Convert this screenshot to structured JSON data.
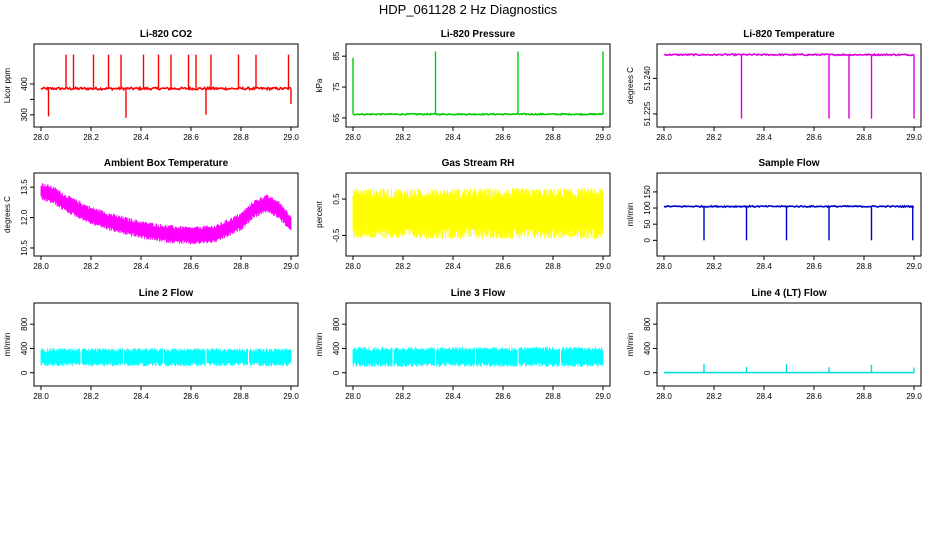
{
  "title": "HDP_061128  2 Hz Diagnostics",
  "chart_data": [
    {
      "type": "line",
      "title": "Li-820 CO2",
      "ylabel": "Licor ppm",
      "color": "#ff0000",
      "xlim": [
        28.0,
        29.0
      ],
      "ylim": [
        280,
        510
      ],
      "yticks": [
        300,
        350,
        400
      ],
      "ytick_labels": [
        "300",
        "",
        "400"
      ],
      "xticks": [
        28.0,
        28.2,
        28.4,
        28.6,
        28.8,
        29.0
      ],
      "xtick_labels": [
        "28.0",
        "28.2",
        "28.4",
        "28.6",
        "28.8",
        "29.0"
      ],
      "baseline": 385,
      "noise": 4,
      "spikes": [
        [
          28.1,
          495
        ],
        [
          28.13,
          495
        ],
        [
          28.21,
          495
        ],
        [
          28.27,
          495
        ],
        [
          28.32,
          495
        ],
        [
          28.41,
          495
        ],
        [
          28.47,
          495
        ],
        [
          28.52,
          495
        ],
        [
          28.59,
          495
        ],
        [
          28.62,
          495
        ],
        [
          28.68,
          495
        ],
        [
          28.79,
          495
        ],
        [
          28.86,
          495
        ],
        [
          28.99,
          495
        ]
      ],
      "dips": [
        [
          28.03,
          295
        ],
        [
          28.34,
          290
        ],
        [
          28.66,
          300
        ],
        [
          29.0,
          335
        ]
      ]
    },
    {
      "type": "line",
      "title": "Li-820 Pressure",
      "ylabel": "kPa",
      "color": "#00cc00",
      "xlim": [
        28.0,
        29.0
      ],
      "ylim": [
        64,
        87
      ],
      "yticks": [
        65,
        75,
        85
      ],
      "ytick_labels": [
        "65",
        "75",
        "85"
      ],
      "xticks": [
        28.0,
        28.2,
        28.4,
        28.6,
        28.8,
        29.0
      ],
      "xtick_labels": [
        "28.0",
        "28.2",
        "28.4",
        "28.6",
        "28.8",
        "29.0"
      ],
      "baseline": 66.2,
      "noise": 0.2,
      "spikes": [
        [
          28.0,
          84.5
        ],
        [
          28.33,
          86.5
        ],
        [
          28.66,
          86.5
        ],
        [
          29.0,
          86.5
        ]
      ],
      "dips": []
    },
    {
      "type": "line",
      "title": "Li-820 Temperature",
      "ylabel": "degrees C",
      "color": "#dd00dd",
      "xlim": [
        28.0,
        29.0
      ],
      "ylim": [
        51.222,
        51.252
      ],
      "yticks": [
        51.225,
        51.24
      ],
      "ytick_labels": [
        "51.225",
        "51.240"
      ],
      "xticks": [
        28.0,
        28.2,
        28.4,
        28.6,
        28.8,
        29.0
      ],
      "xtick_labels": [
        "28.0",
        "28.2",
        "28.4",
        "28.6",
        "28.8",
        "29.0"
      ],
      "baseline": 51.25,
      "noise": 0.0003,
      "spikes": [],
      "dips": [
        [
          28.31,
          51.223
        ],
        [
          28.66,
          51.223
        ],
        [
          28.74,
          51.223
        ],
        [
          28.83,
          51.223
        ],
        [
          29.0,
          51.223
        ]
      ]
    },
    {
      "type": "band",
      "title": "Ambient Box Temperature",
      "ylabel": "degrees C",
      "color": "#ff00ff",
      "xlim": [
        28.0,
        29.0
      ],
      "ylim": [
        10.4,
        13.9
      ],
      "yticks": [
        10.5,
        12.0,
        13.5
      ],
      "ytick_labels": [
        "10.5",
        "12.0",
        "13.5"
      ],
      "xticks": [
        28.0,
        28.2,
        28.4,
        28.6,
        28.8,
        29.0
      ],
      "xtick_labels": [
        "28.0",
        "28.2",
        "28.4",
        "28.6",
        "28.8",
        "29.0"
      ],
      "center_x": [
        28.0,
        28.05,
        28.1,
        28.2,
        28.3,
        28.4,
        28.5,
        28.6,
        28.7,
        28.8,
        28.85,
        28.9,
        28.95,
        29.0
      ],
      "center_y": [
        13.3,
        13.1,
        12.7,
        12.1,
        11.7,
        11.4,
        11.2,
        11.1,
        11.2,
        11.8,
        12.4,
        12.7,
        12.4,
        11.7
      ],
      "halfwidth": 0.45
    },
    {
      "type": "band",
      "title": "Gas Stream RH",
      "ylabel": "percent",
      "color": "#ffff00",
      "xlim": [
        28.0,
        29.0
      ],
      "ylim": [
        -0.9,
        1.05
      ],
      "yticks": [
        -0.5,
        0.5
      ],
      "ytick_labels": [
        "-0.5",
        "0.5"
      ],
      "xticks": [
        28.0,
        28.2,
        28.4,
        28.6,
        28.8,
        29.0
      ],
      "xtick_labels": [
        "28.0",
        "28.2",
        "28.4",
        "28.6",
        "28.8",
        "29.0"
      ],
      "center_x": [
        28.0,
        29.0
      ],
      "center_y": [
        0.1,
        0.1
      ],
      "halfwidth": 0.7
    },
    {
      "type": "line",
      "title": "Sample Flow",
      "ylabel": "ml/min",
      "color": "#0000cc",
      "xlim": [
        28.0,
        29.0
      ],
      "ylim": [
        -30,
        190
      ],
      "yticks": [
        0,
        50,
        100,
        150
      ],
      "ytick_labels": [
        "0",
        "50",
        "100",
        "150"
      ],
      "xticks": [
        28.0,
        28.2,
        28.4,
        28.6,
        28.8,
        29.0
      ],
      "xtick_labels": [
        "28.0",
        "28.2",
        "28.4",
        "28.6",
        "28.8",
        "29.0"
      ],
      "baseline": 105,
      "noise": 2,
      "spikes": [],
      "dips": [
        [
          28.16,
          0
        ],
        [
          28.33,
          0
        ],
        [
          28.49,
          0
        ],
        [
          28.66,
          0
        ],
        [
          28.83,
          0
        ],
        [
          28.995,
          0
        ]
      ]
    },
    {
      "type": "band",
      "title": "Line 2 Flow",
      "ylabel": "ml/min",
      "color": "#00ffff",
      "xlim": [
        28.0,
        29.0
      ],
      "ylim": [
        -120,
        1050
      ],
      "yticks": [
        0,
        400,
        800
      ],
      "ytick_labels": [
        "0",
        "400",
        "800"
      ],
      "xticks": [
        28.0,
        28.2,
        28.4,
        28.6,
        28.8,
        29.0
      ],
      "xtick_labels": [
        "28.0",
        "28.2",
        "28.4",
        "28.6",
        "28.8",
        "29.0"
      ],
      "center_x": [
        28.0,
        29.0
      ],
      "center_y": [
        255,
        255
      ],
      "halfwidth": 150,
      "gaps": [
        28.16,
        28.33,
        28.49,
        28.66,
        28.83
      ]
    },
    {
      "type": "band",
      "title": "Line 3 Flow",
      "ylabel": "ml/min",
      "color": "#00ffff",
      "xlim": [
        28.0,
        29.0
      ],
      "ylim": [
        -120,
        1050
      ],
      "yticks": [
        0,
        400,
        800
      ],
      "ytick_labels": [
        "0",
        "400",
        "800"
      ],
      "xticks": [
        28.0,
        28.2,
        28.4,
        28.6,
        28.8,
        29.0
      ],
      "xtick_labels": [
        "28.0",
        "28.2",
        "28.4",
        "28.6",
        "28.8",
        "29.0"
      ],
      "center_x": [
        28.0,
        29.0
      ],
      "center_y": [
        260,
        260
      ],
      "halfwidth": 165,
      "gaps": [
        28.16,
        28.33,
        28.49,
        28.66,
        28.83
      ]
    },
    {
      "type": "line",
      "title": "Line 4 (LT) Flow",
      "ylabel": "ml/min",
      "color": "#00dddd",
      "xlim": [
        28.0,
        29.0
      ],
      "ylim": [
        -120,
        1050
      ],
      "yticks": [
        0,
        400,
        800
      ],
      "ytick_labels": [
        "0",
        "400",
        "800"
      ],
      "xticks": [
        28.0,
        28.2,
        28.4,
        28.6,
        28.8,
        29.0
      ],
      "xtick_labels": [
        "28.0",
        "28.2",
        "28.4",
        "28.6",
        "28.8",
        "29.0"
      ],
      "baseline": 2,
      "noise": 1,
      "spikes": [
        [
          28.16,
          150
        ],
        [
          28.33,
          95
        ],
        [
          28.49,
          140
        ],
        [
          28.66,
          90
        ],
        [
          28.83,
          130
        ],
        [
          29.0,
          85
        ]
      ],
      "dips": []
    }
  ]
}
